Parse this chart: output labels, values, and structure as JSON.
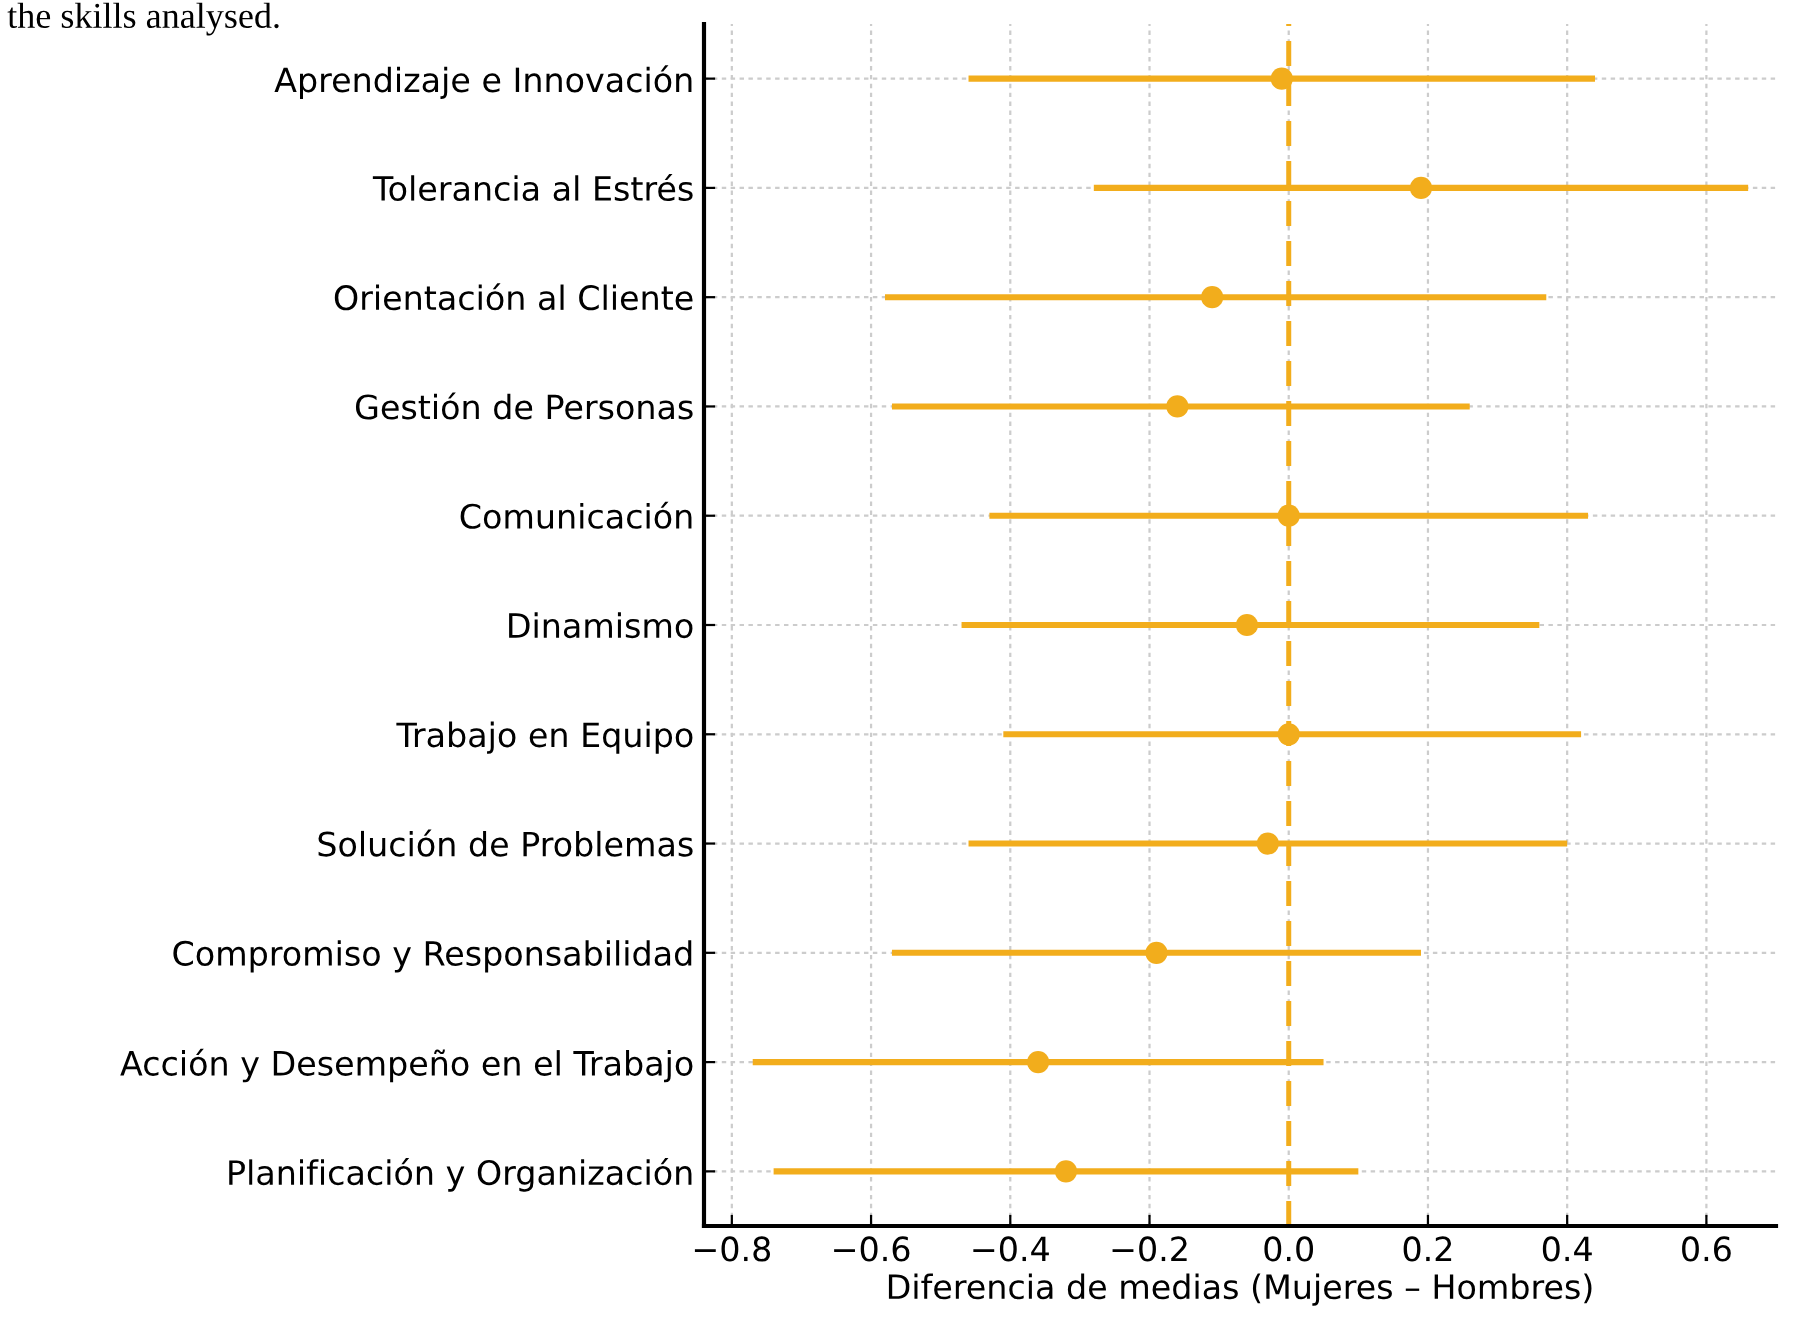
{
  "chart_data": {
    "type": "scatter",
    "orientation": "horizontal",
    "xlabel": "Diferencia de medias (Mujeres – Hombres)",
    "annotations": [
      "the skills analysed."
    ],
    "categories": [
      "Aprendizaje e Innovación",
      "Tolerancia al Estrés",
      "Orientación al Cliente",
      "Gestión de Personas",
      "Comunicación",
      "Dinamismo",
      "Trabajo en Equipo",
      "Solución de Problemas",
      "Compromiso y Responsabilidad",
      "Acción y Desempeño en el Trabajo",
      "Planificación y Organización"
    ],
    "values": [
      -0.01,
      0.19,
      -0.11,
      -0.16,
      0.0,
      -0.06,
      0.0,
      -0.03,
      -0.19,
      -0.36,
      -0.32
    ],
    "errors": [
      [
        -0.46,
        0.44
      ],
      [
        -0.28,
        0.66
      ],
      [
        -0.58,
        0.37
      ],
      [
        -0.57,
        0.26
      ],
      [
        -0.43,
        0.43
      ],
      [
        -0.47,
        0.36
      ],
      [
        -0.41,
        0.42
      ],
      [
        -0.46,
        0.4
      ],
      [
        -0.57,
        0.19
      ],
      [
        -0.77,
        0.05
      ],
      [
        -0.74,
        0.1
      ]
    ],
    "color": "#f2ad1c",
    "marker": "circle",
    "xlim": [
      -0.84,
      0.7
    ],
    "xticks": [
      {
        "value": -0.8,
        "label": "−0.8"
      },
      {
        "value": -0.6,
        "label": "−0.6"
      },
      {
        "value": -0.4,
        "label": "−0.4"
      },
      {
        "value": -0.2,
        "label": "−0.2"
      },
      {
        "value": 0.0,
        "label": "0.0"
      },
      {
        "value": 0.2,
        "label": "0.2"
      },
      {
        "value": 0.4,
        "label": "0.4"
      },
      {
        "value": 0.6,
        "label": "0.6"
      }
    ],
    "ref_lines": [
      {
        "axis": "x",
        "value": 0,
        "label": null,
        "color": "#f2ad1c",
        "line_style": "dashed"
      }
    ],
    "grid": true
  }
}
